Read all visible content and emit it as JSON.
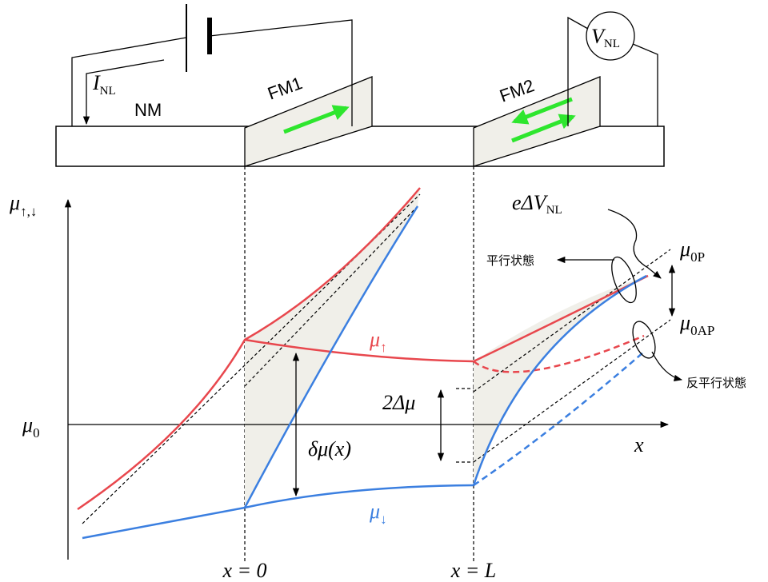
{
  "circuit": {
    "current": {
      "main": "I",
      "sub": "NL"
    },
    "normal_metal": "NM",
    "ferromagnet_1": "FM1",
    "ferromagnet_2": "FM2",
    "voltmeter": {
      "main": "V",
      "sub": "NL"
    }
  },
  "plot": {
    "y_axis": {
      "main": "μ",
      "sub": "↑,↓"
    },
    "origin": {
      "main": "μ",
      "sub": "0"
    },
    "x_axis": "x",
    "x_zero": "x = 0",
    "x_L": "x = L",
    "mu_up": {
      "main": "μ",
      "sub": "↑"
    },
    "mu_down": {
      "main": "μ",
      "sub": "↓"
    },
    "delta_mu": "δμ(x)",
    "two_delta_mu": "2Δμ",
    "signal": {
      "main": "eΔV",
      "sub": "NL"
    },
    "mu_0P": {
      "main": "μ",
      "sub": "0P"
    },
    "mu_0AP": {
      "main": "μ",
      "sub": "0AP"
    },
    "parallel": "平行状態",
    "antiparallel": "反平行状態"
  }
}
